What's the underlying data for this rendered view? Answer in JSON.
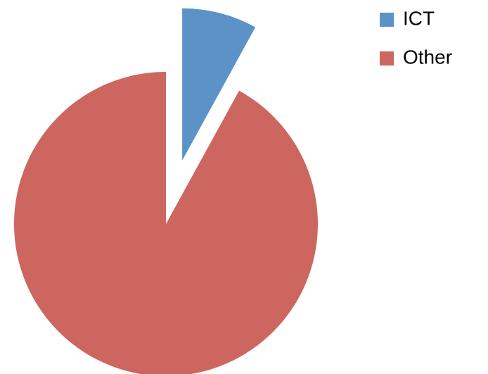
{
  "chart_data": {
    "type": "pie",
    "categories": [
      "ICT",
      "Other"
    ],
    "values": [
      8,
      92
    ],
    "colors": [
      "#5b93c8",
      "#cd665e"
    ]
  }
}
